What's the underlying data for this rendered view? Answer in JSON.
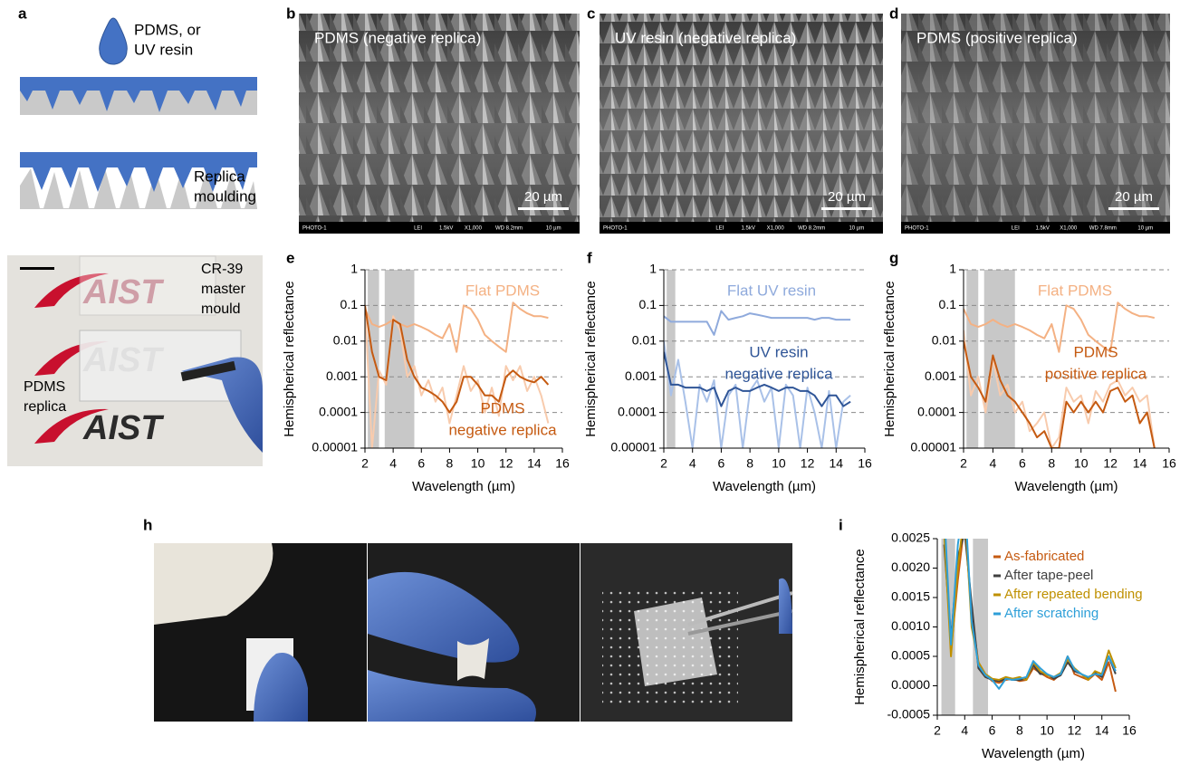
{
  "panels": {
    "labels": [
      "a",
      "b",
      "c",
      "d",
      "e",
      "f",
      "g",
      "h",
      "i"
    ]
  },
  "panel_a": {
    "drop_label": [
      "PDMS, or",
      "UV resin"
    ],
    "step_label": [
      "Replica",
      "moulding"
    ],
    "photo": {
      "master_label": [
        "CR-39",
        "master",
        "mould"
      ],
      "replica_label": [
        "PDMS",
        "replica"
      ],
      "logo": "AIST"
    }
  },
  "sem": [
    {
      "title": "PDMS (negative replica)",
      "scale": "20 µm",
      "footer": [
        "PHOTO-1",
        "LEI",
        "1.5kV",
        "X1,000",
        "WD 8.2mm",
        "10 µm"
      ]
    },
    {
      "title": "UV resin (negative replica)",
      "scale": "20 µm",
      "footer": [
        "PHOTO-1",
        "LEI",
        "1.5kV",
        "X1,000",
        "WD 8.2mm",
        "10 µm"
      ]
    },
    {
      "title": "PDMS (positive replica)",
      "scale": "20 µm",
      "footer": [
        "PHOTO-1",
        "LEI",
        "1.5kV",
        "X1,000",
        "WD 7.8mm",
        "10 µm"
      ]
    }
  ],
  "chart_data": [
    {
      "type": "line",
      "ylabel": "Hemispherical reflectance",
      "xlabel": "Wavelength (µm)",
      "log_y": true,
      "grid": true,
      "x": [
        2,
        2.5,
        3,
        3.5,
        4,
        4.5,
        5,
        5.5,
        6,
        6.5,
        7,
        7.5,
        8,
        8.5,
        9,
        9.5,
        10,
        10.5,
        11,
        11.5,
        12,
        12.5,
        13,
        13.5,
        14,
        14.5,
        15
      ],
      "xlim": [
        2,
        16
      ],
      "xticks": [
        2,
        4,
        6,
        8,
        10,
        12,
        14,
        16
      ],
      "ylim": [
        1e-05,
        1
      ],
      "yticks": [
        1,
        0.1,
        0.01,
        0.001,
        0.0001,
        1e-05
      ],
      "shaded": [
        [
          2.2,
          3.0
        ],
        [
          3.4,
          5.5
        ]
      ],
      "series": [
        {
          "label": [
            "Flat PDMS"
          ],
          "color": "#f4b183",
          "values": [
            0.08,
            0.03,
            0.025,
            0.03,
            0.04,
            0.03,
            0.025,
            0.03,
            0.025,
            0.02,
            0.015,
            0.012,
            0.03,
            0.005,
            0.1,
            0.08,
            0.04,
            0.015,
            0.01,
            0.007,
            0.005,
            0.12,
            0.08,
            0.06,
            0.05,
            0.05,
            0.045
          ]
        },
        {
          "color": "#f8cbad",
          "values": [
            0.1,
            1e-05,
            0.0015,
            0.0006,
            0.05,
            0.02,
            0.001,
            0.002,
            0.0003,
            0.0008,
            0.0002,
            0.0005,
            5e-05,
            0.0003,
            0.002,
            0.0004,
            0.0008,
            0.0001,
            0.0005,
            8e-05,
            0.002,
            0.0008,
            0.002,
            0.0004,
            0.001,
            0.0003,
            5e-05
          ]
        },
        {
          "label": [
            "PDMS",
            "negative replica"
          ],
          "color": "#c55a11",
          "values": [
            0.1,
            0.005,
            0.001,
            0.0008,
            0.04,
            0.03,
            0.003,
            0.001,
            0.0005,
            0.0004,
            0.0003,
            0.0002,
            0.0001,
            0.0002,
            0.001,
            0.001,
            0.0006,
            0.0003,
            0.0003,
            0.0002,
            0.001,
            0.0015,
            0.001,
            0.0008,
            0.0007,
            0.001,
            0.0006
          ]
        }
      ]
    },
    {
      "type": "line",
      "ylabel": "Hemispherical reflectance",
      "xlabel": "Wavelength (µm)",
      "log_y": true,
      "grid": true,
      "x": [
        2,
        2.5,
        3,
        3.5,
        4,
        4.5,
        5,
        5.5,
        6,
        6.5,
        7,
        7.5,
        8,
        8.5,
        9,
        9.5,
        10,
        10.5,
        11,
        11.5,
        12,
        12.5,
        13,
        13.5,
        14,
        14.5,
        15
      ],
      "xlim": [
        2,
        16
      ],
      "xticks": [
        2,
        4,
        6,
        8,
        10,
        12,
        14,
        16
      ],
      "ylim": [
        1e-05,
        1
      ],
      "yticks": [
        1,
        0.1,
        0.01,
        0.001,
        0.0001,
        1e-05
      ],
      "shaded": [
        [
          2.2,
          2.8
        ]
      ],
      "series": [
        {
          "label": [
            "Flat UV resin"
          ],
          "color": "#8faadc",
          "values": [
            0.05,
            0.035,
            0.035,
            0.035,
            0.035,
            0.035,
            0.035,
            0.015,
            0.07,
            0.04,
            0.045,
            0.05,
            0.06,
            0.055,
            0.05,
            0.045,
            0.045,
            0.045,
            0.045,
            0.045,
            0.045,
            0.04,
            0.045,
            0.045,
            0.04,
            0.04,
            0.04
          ]
        },
        {
          "color": "#a9c1e8",
          "values": [
            0.01,
            0.0003,
            0.003,
            0.0002,
            1e-05,
            0.0006,
            0.0002,
            0.0008,
            1e-05,
            0.0003,
            0.0006,
            1e-05,
            0.0004,
            0.0008,
            0.0002,
            0.0005,
            1e-05,
            0.0006,
            0.0003,
            1e-05,
            0.0005,
            0.0001,
            1e-05,
            0.0004,
            1e-05,
            0.0002,
            0.0003
          ]
        },
        {
          "label": [
            "UV resin",
            "negative replica"
          ],
          "color": "#2f5597",
          "values": [
            0.005,
            0.0006,
            0.0006,
            0.0005,
            0.0005,
            0.0005,
            0.0004,
            0.0005,
            0.00015,
            0.0004,
            0.0005,
            0.0004,
            0.0004,
            0.0005,
            0.0006,
            0.0005,
            0.0004,
            0.0005,
            0.0005,
            0.0004,
            0.0004,
            0.0003,
            0.00015,
            0.0003,
            0.0003,
            0.00015,
            0.0002
          ]
        }
      ]
    },
    {
      "type": "line",
      "ylabel": "Hemispherical reflectance",
      "xlabel": "Wavelength (µm)",
      "log_y": true,
      "grid": true,
      "x": [
        2,
        2.5,
        3,
        3.5,
        4,
        4.5,
        5,
        5.5,
        6,
        6.5,
        7,
        7.5,
        8,
        8.5,
        9,
        9.5,
        10,
        10.5,
        11,
        11.5,
        12,
        12.5,
        13,
        13.5,
        14,
        14.5,
        15
      ],
      "xlim": [
        2,
        16
      ],
      "xticks": [
        2,
        4,
        6,
        8,
        10,
        12,
        14,
        16
      ],
      "ylim": [
        1e-05,
        1
      ],
      "yticks": [
        1,
        0.1,
        0.01,
        0.001,
        0.0001,
        1e-05
      ],
      "shaded": [
        [
          2.2,
          3.0
        ],
        [
          3.4,
          5.5
        ]
      ],
      "series": [
        {
          "label": [
            "Flat PDMS"
          ],
          "color": "#f4b183",
          "values": [
            0.08,
            0.03,
            0.025,
            0.03,
            0.04,
            0.03,
            0.025,
            0.03,
            0.025,
            0.02,
            0.015,
            0.012,
            0.03,
            0.005,
            0.1,
            0.08,
            0.04,
            0.015,
            0.01,
            0.007,
            0.005,
            0.12,
            0.08,
            0.06,
            0.05,
            0.05,
            0.045
          ]
        },
        {
          "color": "#f8cbad",
          "values": [
            0.02,
            0.0003,
            0.001,
            0.0001,
            0.003,
            0.0003,
            0.0006,
            0.0001,
            0.0002,
            3e-05,
            5e-05,
            0.0001,
            1e-05,
            2e-05,
            0.0005,
            0.0002,
            0.0003,
            5e-05,
            0.0004,
            0.0002,
            0.0006,
            0.0008,
            0.0003,
            0.0005,
            0.0002,
            0.0003,
            1e-05
          ]
        },
        {
          "label": [
            "PDMS",
            "positive replica"
          ],
          "color": "#c55a11",
          "values": [
            0.01,
            0.001,
            0.0005,
            0.0002,
            0.004,
            0.0008,
            0.0003,
            0.0002,
            0.0001,
            5e-05,
            2e-05,
            3e-05,
            1e-05,
            1e-05,
            0.0002,
            0.0001,
            0.0002,
            0.0001,
            0.0002,
            0.0001,
            0.0004,
            0.0005,
            0.0002,
            0.0003,
            5e-05,
            0.0001,
            1e-05
          ]
        }
      ]
    },
    {
      "type": "line",
      "ylabel": "Hemispherical reflectance",
      "xlabel": "Wavelength (µm)",
      "log_y": false,
      "grid": false,
      "legend": "upper right",
      "x": [
        2.5,
        3,
        3.5,
        4,
        4.5,
        5,
        5.5,
        6,
        6.5,
        7,
        7.5,
        8,
        8.5,
        9,
        9.5,
        10,
        10.5,
        11,
        11.5,
        12,
        12.5,
        13,
        13.5,
        14,
        14.5,
        15
      ],
      "xlim": [
        2,
        16
      ],
      "xticks": [
        2,
        4,
        6,
        8,
        10,
        12,
        14,
        16
      ],
      "ylim": [
        -0.0005,
        0.0025
      ],
      "yticks": [
        0.0025,
        {
          "value": 0.002,
          "label": "0.0020"
        },
        0.0015,
        {
          "value": 0.001,
          "label": "0.0010"
        },
        0.0005,
        {
          "value": 0,
          "label": "0.0000"
        },
        -0.0005
      ],
      "shaded": [
        [
          2.3,
          3.3
        ],
        [
          4.6,
          5.7
        ]
      ],
      "series": [
        {
          "name": "As-fabricated",
          "color": "#c55a11",
          "values": [
            0.0028,
            0.0006,
            0.0018,
            0.0028,
            0.0012,
            0.0004,
            0.0002,
            8e-05,
            5e-05,
            0.0001,
            0.00012,
            8e-05,
            0.0001,
            0.0003,
            0.00022,
            0.00015,
            0.0001,
            0.0002,
            0.0005,
            0.0002,
            0.00015,
            0.0001,
            0.0002,
            0.0001,
            0.0004,
            -0.0001
          ]
        },
        {
          "name": "After tape-peel",
          "color": "#404040",
          "values": [
            0.0024,
            0.0008,
            0.0022,
            0.0026,
            0.0014,
            0.0003,
            0.00015,
            0.0001,
            8e-05,
            0.00012,
            0.0001,
            0.0001,
            0.00012,
            0.00035,
            0.0002,
            0.0002,
            0.00012,
            0.00018,
            0.0004,
            0.00025,
            0.0002,
            0.00012,
            0.00022,
            0.00015,
            0.0005,
            0.0002
          ]
        },
        {
          "name": "After repeated bending",
          "color": "#bf9000",
          "values": [
            0.0026,
            0.0005,
            0.002,
            0.003,
            0.001,
            0.0004,
            0.0002,
            0.00012,
            0.0001,
            0.00015,
            0.00012,
            0.00015,
            0.0001,
            0.0004,
            0.00025,
            0.00018,
            0.00015,
            0.00022,
            0.00045,
            0.0003,
            0.0002,
            0.0001,
            0.00025,
            0.0002,
            0.0006,
            0.0003
          ]
        },
        {
          "name": "After scratching",
          "color": "#2e9fd8",
          "values": [
            0.003,
            0.0007,
            0.0024,
            0.0032,
            0.0011,
            0.00035,
            0.00018,
            0.0001,
            -5e-05,
            0.00012,
            0.0001,
            0.00012,
            0.00015,
            0.00042,
            0.0003,
            0.0002,
            0.00015,
            0.0002,
            0.0005,
            0.00028,
            0.0002,
            0.00015,
            0.0002,
            0.00018,
            0.0005,
            0.00025
          ]
        }
      ]
    }
  ]
}
